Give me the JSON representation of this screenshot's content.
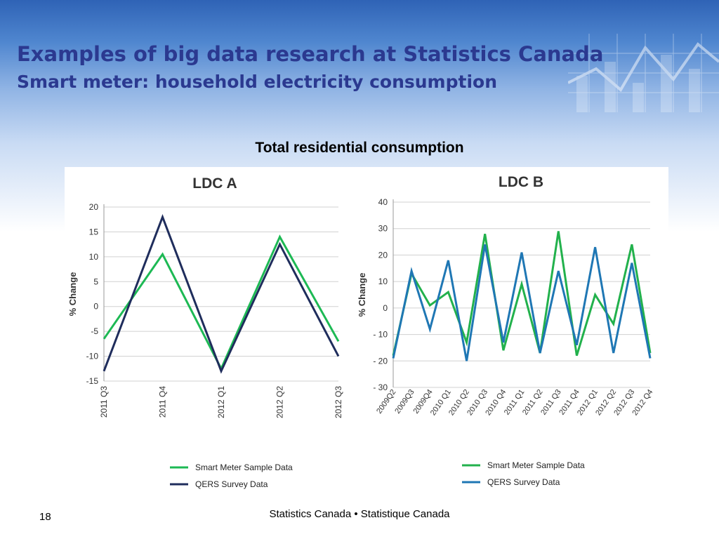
{
  "slide": {
    "title_line1": "Examples of big data research at Statistics Canada",
    "title_line2": "Smart meter: household electricity consumption",
    "subtitle": "Total residential consumption",
    "footer": "Statistics Canada • Statistique Canada",
    "page_number": "18"
  },
  "colors": {
    "title": "#2b3990",
    "smart_meter_a": "#1db954",
    "qers_a": "#1f2d5c",
    "smart_meter_b": "#22b14c",
    "qers_b": "#1f77b4",
    "grid": "#d0d0d0"
  },
  "chart_data": [
    {
      "type": "line",
      "title": "LDC A",
      "ylabel": "% Change",
      "xlabel": "",
      "categories": [
        "2011 Q3",
        "2011 Q4",
        "2012 Q1",
        "2012 Q2",
        "2012 Q3"
      ],
      "ylim": [
        -15,
        20
      ],
      "yticks": [
        20,
        15,
        10,
        5,
        0,
        -5,
        -10,
        -15
      ],
      "ytick_labels": [
        "20",
        "15",
        "10",
        "5",
        "0",
        "-5",
        "-10",
        "-15"
      ],
      "grid": true,
      "legend_position": "bottom-left",
      "series": [
        {
          "name": "Smart Meter Sample Data",
          "values": [
            -6.5,
            10.5,
            -12.5,
            14,
            -7
          ]
        },
        {
          "name": "QERS Survey Data",
          "values": [
            -13,
            18,
            -13,
            12.5,
            -10
          ]
        }
      ]
    },
    {
      "type": "line",
      "title": "LDC B",
      "ylabel": "% Change",
      "xlabel": "",
      "categories": [
        "2009Q2",
        "2009Q3",
        "2009Q4",
        "2010 Q1",
        "2010 Q2",
        "2010 Q3",
        "2010 Q4",
        "2011 Q1",
        "2011 Q2",
        "2011 Q3",
        "2011 Q4",
        "2012 Q1",
        "2012 Q2",
        "2012 Q3",
        "2012 Q4"
      ],
      "ylim": [
        -30,
        40
      ],
      "yticks": [
        40,
        30,
        20,
        10,
        0,
        -10,
        -20,
        -30
      ],
      "ytick_labels": [
        "40",
        "30",
        "20",
        "10",
        "0",
        "- 10",
        "- 20",
        "- 30"
      ],
      "grid": true,
      "legend_position": "bottom-right",
      "series": [
        {
          "name": "Smart Meter Sample Data",
          "values": [
            -18,
            13,
            1,
            6,
            -13,
            28,
            -16,
            9,
            -17,
            29,
            -18,
            5,
            -6,
            24,
            -17
          ]
        },
        {
          "name": "QERS Survey Data",
          "values": [
            -19,
            14,
            -8,
            18,
            -20,
            24,
            -13,
            21,
            -17,
            14,
            -14,
            23,
            -17,
            17,
            -19
          ]
        }
      ]
    }
  ]
}
